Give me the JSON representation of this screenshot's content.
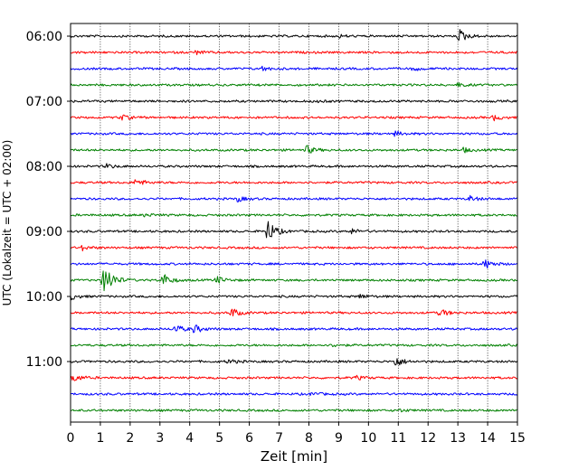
{
  "chart_data": {
    "type": "line",
    "title": "",
    "xlabel": "Zeit  [min]",
    "ylabel": "UTC (Lokalzeit = UTC + 02:00)",
    "xlim": [
      0,
      15
    ],
    "xticks": [
      0,
      1,
      2,
      3,
      4,
      5,
      6,
      7,
      8,
      9,
      10,
      11,
      12,
      13,
      14,
      15
    ],
    "ytick_labels": [
      "06:00",
      "07:00",
      "08:00",
      "09:00",
      "10:00",
      "11:00"
    ],
    "ytick_trace_index": [
      0,
      4,
      8,
      12,
      16,
      20
    ],
    "trace_interval_min": 15,
    "grid_x": true,
    "colors": [
      "#000000",
      "#ff0000",
      "#0000ff",
      "#008000"
    ],
    "traces": [
      {
        "start": "06:00",
        "events": [
          {
            "t": 9.0,
            "amp": 0.15
          },
          {
            "t": 13.05,
            "amp": 0.75
          }
        ]
      },
      {
        "start": "06:15",
        "events": [
          {
            "t": 4.2,
            "amp": 0.2
          }
        ]
      },
      {
        "start": "06:30",
        "events": [
          {
            "t": 6.4,
            "amp": 0.25
          },
          {
            "t": 11.5,
            "amp": 0.2
          }
        ]
      },
      {
        "start": "06:45",
        "events": [
          {
            "t": 13.0,
            "amp": 0.2
          }
        ]
      },
      {
        "start": "07:00",
        "events": [
          {
            "t": 8.2,
            "amp": 0.15
          }
        ]
      },
      {
        "start": "07:15",
        "events": [
          {
            "t": 1.7,
            "amp": 0.3
          },
          {
            "t": 14.2,
            "amp": 0.3
          }
        ]
      },
      {
        "start": "07:30",
        "events": [
          {
            "t": 10.9,
            "amp": 0.25
          }
        ]
      },
      {
        "start": "07:45",
        "events": [
          {
            "t": 7.9,
            "amp": 0.5
          },
          {
            "t": 13.2,
            "amp": 0.25
          }
        ]
      },
      {
        "start": "08:00",
        "events": [
          {
            "t": 1.2,
            "amp": 0.25
          }
        ]
      },
      {
        "start": "08:15",
        "events": [
          {
            "t": 2.2,
            "amp": 0.45
          }
        ]
      },
      {
        "start": "08:30",
        "events": [
          {
            "t": 5.6,
            "amp": 0.3
          },
          {
            "t": 13.4,
            "amp": 0.3
          }
        ]
      },
      {
        "start": "08:45",
        "events": [
          {
            "t": 2.5,
            "amp": 0.15
          }
        ]
      },
      {
        "start": "09:00",
        "events": [
          {
            "t": 6.6,
            "amp": 1.4
          },
          {
            "t": 9.4,
            "amp": 0.3
          }
        ]
      },
      {
        "start": "09:15",
        "events": [
          {
            "t": 0.4,
            "amp": 0.25
          }
        ]
      },
      {
        "start": "09:30",
        "events": [
          {
            "t": 13.9,
            "amp": 0.55
          }
        ]
      },
      {
        "start": "09:45",
        "events": [
          {
            "t": 1.1,
            "amp": 2.6
          },
          {
            "t": 3.05,
            "amp": 0.9
          },
          {
            "t": 4.9,
            "amp": 0.4
          }
        ]
      },
      {
        "start": "10:00",
        "events": [
          {
            "t": 0.0,
            "amp": 0.35
          },
          {
            "t": 9.7,
            "amp": 0.25
          }
        ]
      },
      {
        "start": "10:15",
        "events": [
          {
            "t": 5.4,
            "amp": 0.55
          },
          {
            "t": 12.4,
            "amp": 0.45
          }
        ]
      },
      {
        "start": "10:30",
        "events": [
          {
            "t": 3.5,
            "amp": 0.5
          },
          {
            "t": 4.15,
            "amp": 0.45
          }
        ]
      },
      {
        "start": "10:45",
        "events": [
          {
            "t": 8.8,
            "amp": 0.15
          }
        ]
      },
      {
        "start": "11:00",
        "events": [
          {
            "t": 5.3,
            "amp": 0.25
          },
          {
            "t": 10.9,
            "amp": 0.6
          }
        ]
      },
      {
        "start": "11:15",
        "events": [
          {
            "t": 0.1,
            "amp": 0.45
          },
          {
            "t": 9.6,
            "amp": 0.2
          }
        ]
      },
      {
        "start": "11:30",
        "events": [
          {
            "t": 8.1,
            "amp": 0.2
          }
        ]
      },
      {
        "start": "11:45",
        "events": [
          {
            "t": 11.0,
            "amp": 0.15
          }
        ]
      }
    ]
  }
}
